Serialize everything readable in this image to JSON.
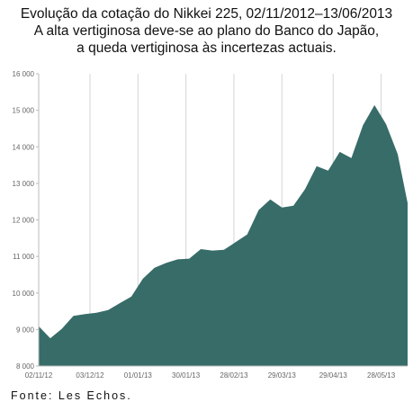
{
  "title_lines": [
    "Evolução da cotação do Nikkei 225, 02/11/2012–13/06/2013",
    "A alta vertiginosa deve-se ao plano do Banco do Japão,",
    "a queda vertiginosa às incertezas actuais."
  ],
  "source": "Fonte: Les Echos.",
  "chart_data": {
    "type": "area",
    "title": "Evolução da cotação do Nikkei 225, 02/11/2012–13/06/2013",
    "subtitle": "A alta vertiginosa deve-se ao plano do Banco do Japão, a queda vertiginosa às incertezas actuais.",
    "xlabel": "",
    "ylabel": "",
    "x_range": [
      "02/11/12",
      "13/06/13"
    ],
    "ylim": [
      8000,
      16000
    ],
    "y_ticks": [
      8000,
      9000,
      10000,
      11000,
      12000,
      13000,
      14000,
      15000,
      16000
    ],
    "y_tick_labels": [
      "8 000",
      "9 000",
      "10 000",
      "11 000",
      "12 000",
      "13 000",
      "14 000",
      "15 000",
      "16 000"
    ],
    "x_tick_labels": [
      "02/11/12",
      "03/12/12",
      "01/01/13",
      "30/01/13",
      "28/02/13",
      "29/03/13",
      "29/04/13",
      "28/05/13"
    ],
    "grid": {
      "vertical": true,
      "horizontal": false
    },
    "colors": {
      "fill": "#376c68",
      "grid": "#d4d4d4",
      "axis": "#bbbbbb",
      "tick_text": "#666666"
    },
    "series": [
      {
        "name": "",
        "x": [
          "02/11/12",
          "09/11/12",
          "16/11/12",
          "23/11/12",
          "30/11/12",
          "07/12/12",
          "14/12/12",
          "21/12/12",
          "28/12/12",
          "04/01/13",
          "11/01/13",
          "18/01/13",
          "25/01/13",
          "01/02/13",
          "08/02/13",
          "15/02/13",
          "22/02/13",
          "01/03/13",
          "08/03/13",
          "15/03/13",
          "22/03/13",
          "29/03/13",
          "05/04/13",
          "12/04/13",
          "19/04/13",
          "26/04/13",
          "03/05/13",
          "10/05/13",
          "17/05/13",
          "24/05/13",
          "31/05/13",
          "07/06/13",
          "13/06/13"
        ],
        "values": [
          9090,
          8760,
          9020,
          9370,
          9420,
          9460,
          9530,
          9720,
          9900,
          10390,
          10690,
          10820,
          10920,
          10940,
          11200,
          11160,
          11180,
          11390,
          11600,
          12270,
          12560,
          12340,
          12390,
          12840,
          13470,
          13350,
          13860,
          13690,
          14590,
          15140,
          14620,
          13800,
          12460
        ]
      }
    ]
  }
}
